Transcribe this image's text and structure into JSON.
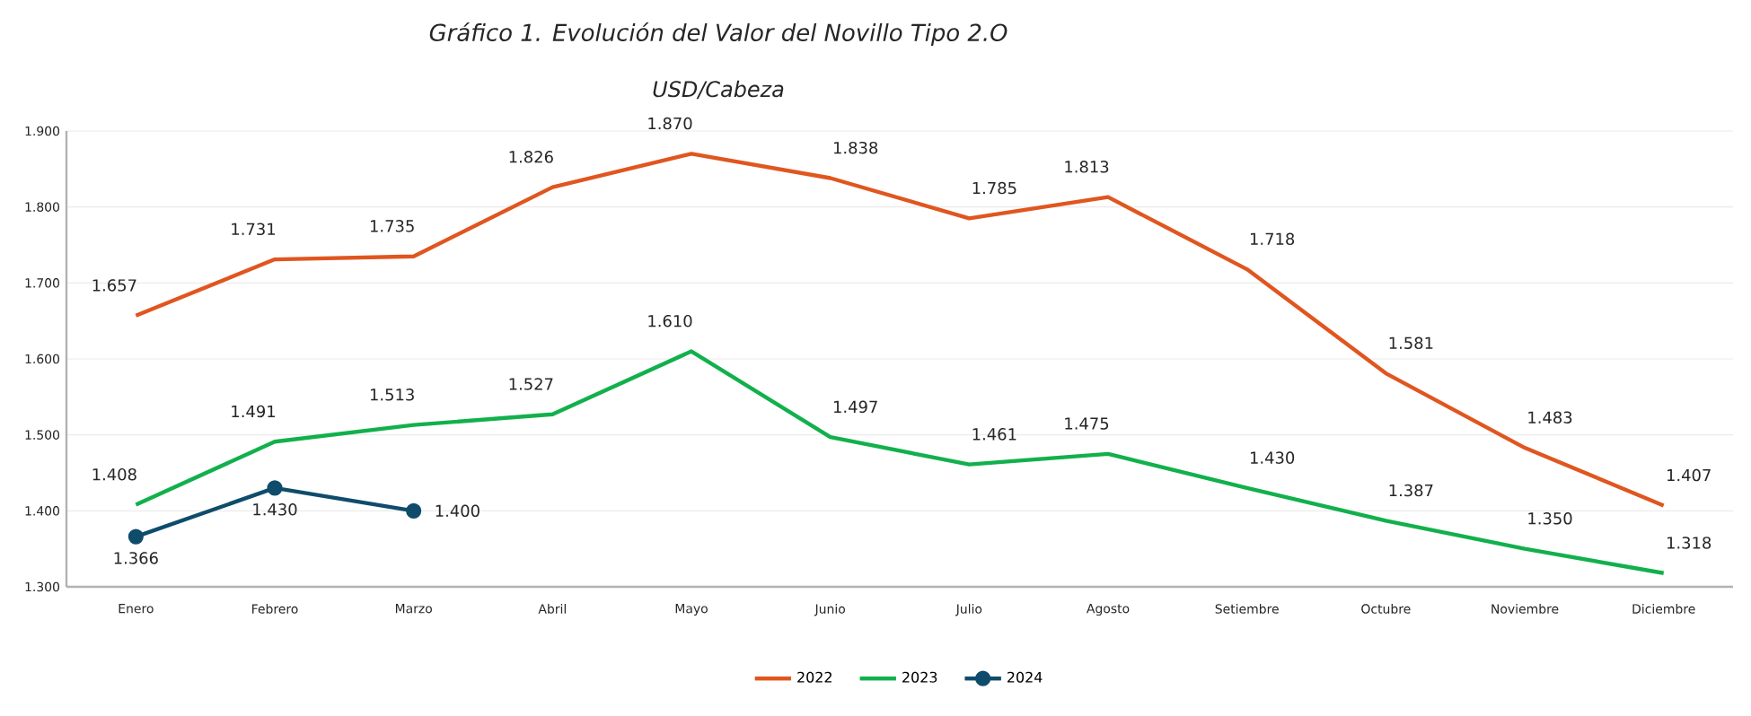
{
  "chart_data": {
    "type": "line",
    "title": "Gráfico 1. Evolución del Valor del Novillo Tipo 2.O",
    "subtitle": "USD/Cabeza",
    "categories": [
      "Enero",
      "Febrero",
      "Marzo",
      "Abril",
      "Mayo",
      "Junio",
      "Julio",
      "Agosto",
      "Setiembre",
      "Octubre",
      "Noviembre",
      "Diciembre"
    ],
    "series": [
      {
        "name": "2022",
        "color": "#e0561f",
        "marker": "none",
        "values": [
          1657,
          1731,
          1735,
          1826,
          1870,
          1838,
          1785,
          1813,
          1718,
          1581,
          1483,
          1407
        ],
        "value_labels": [
          "1.657",
          "1.731",
          "1.735",
          "1.826",
          "1.870",
          "1.838",
          "1.785",
          "1.813",
          "1.718",
          "1.581",
          "1.483",
          "1.407"
        ]
      },
      {
        "name": "2023",
        "color": "#12b04c",
        "marker": "none",
        "values": [
          1408,
          1491,
          1513,
          1527,
          1610,
          1497,
          1461,
          1475,
          1430,
          1387,
          1350,
          1318
        ],
        "value_labels": [
          "1.408",
          "1.491",
          "1.513",
          "1.527",
          "1.610",
          "1.497",
          "1.461",
          "1.475",
          "1.430",
          "1.387",
          "1.350",
          "1.318"
        ]
      },
      {
        "name": "2024",
        "color": "#0f4c6b",
        "marker": "circle",
        "values": [
          1366,
          1430,
          1400,
          null,
          null,
          null,
          null,
          null,
          null,
          null,
          null,
          null
        ],
        "value_labels": [
          "1.366",
          "1.430",
          "1.400",
          null,
          null,
          null,
          null,
          null,
          null,
          null,
          null,
          null
        ]
      }
    ],
    "ylim": [
      1300,
      1900
    ],
    "yticks": [
      {
        "value": 1300,
        "label": "1.300"
      },
      {
        "value": 1400,
        "label": "1.400"
      },
      {
        "value": 1500,
        "label": "1.500"
      },
      {
        "value": 1600,
        "label": "1.600"
      },
      {
        "value": 1700,
        "label": "1.700"
      },
      {
        "value": 1800,
        "label": "1.800"
      },
      {
        "value": 1900,
        "label": "1.900"
      }
    ],
    "grid": "y",
    "legend": "bottom",
    "line_style": "solid"
  }
}
